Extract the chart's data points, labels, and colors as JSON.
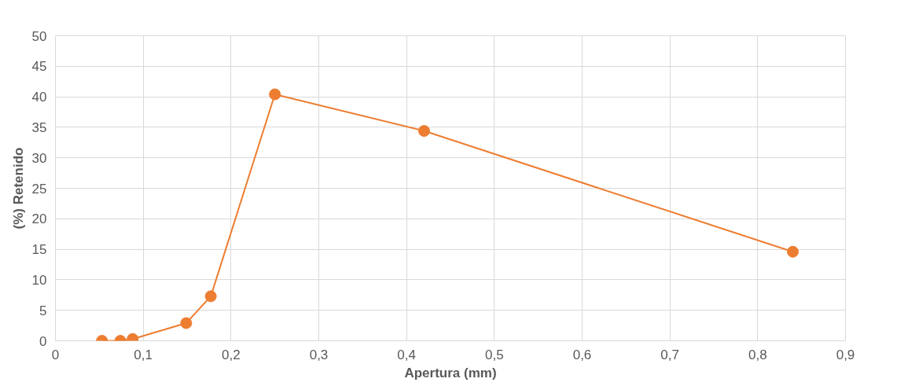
{
  "chart_data": {
    "type": "line",
    "xlabel": "Apertura (mm)",
    "ylabel": "(%) Retenido",
    "x": [
      0.053,
      0.074,
      0.088,
      0.149,
      0.177,
      0.25,
      0.42,
      0.84
    ],
    "series": [
      {
        "color": "#ed7d31",
        "values": [
          0,
          0,
          0.3,
          2.9,
          7.3,
          40.4,
          34.4,
          14.6
        ]
      }
    ],
    "marker": "circle",
    "grid": true,
    "xlim": [
      0,
      0.9
    ],
    "ylim": [
      0,
      50
    ],
    "xticks": [
      0,
      {
        "value": 0.1,
        "label": "0,1"
      },
      {
        "value": 0.2,
        "label": "0,2"
      },
      {
        "value": 0.3,
        "label": "0,3"
      },
      {
        "value": 0.4,
        "label": "0,4"
      },
      {
        "value": 0.5,
        "label": "0,5"
      },
      {
        "value": 0.6,
        "label": "0,6"
      },
      {
        "value": 0.7,
        "label": "0,7"
      },
      {
        "value": 0.8,
        "label": "0,8"
      },
      {
        "value": 0.9,
        "label": "0,9"
      }
    ],
    "yticks": [
      0,
      5,
      10,
      15,
      20,
      25,
      30,
      35,
      40,
      45,
      50
    ]
  }
}
